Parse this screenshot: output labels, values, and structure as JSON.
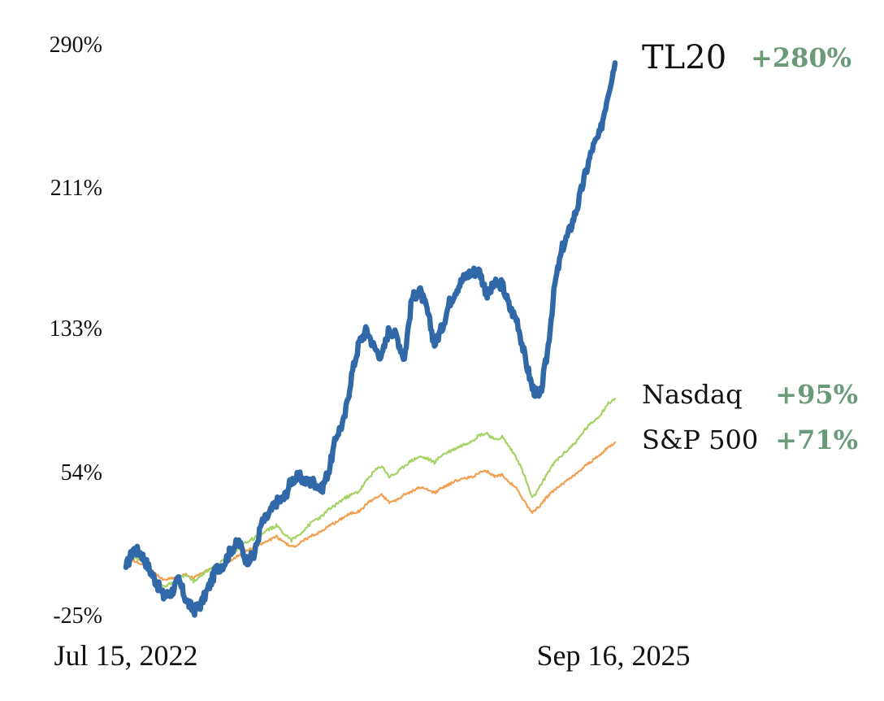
{
  "chart_data": {
    "type": "line",
    "title": "",
    "xlabel": "",
    "ylabel": "",
    "x_range": [
      "Jul 15, 2022",
      "Sep 16, 2025"
    ],
    "x_tick_labels": [
      "Jul 15, 2022",
      "Sep 16, 2025"
    ],
    "y_tick_labels": [
      "290%",
      "211%",
      "133%",
      "54%",
      "-25%"
    ],
    "y_tick_values": [
      290,
      211,
      133,
      54,
      -25
    ],
    "ylim": [
      -25,
      290
    ],
    "grid": false,
    "legend": "right, inline at series ends",
    "series": [
      {
        "name": "TL20",
        "return_label": "+280%",
        "color": "#3169a8",
        "name_color": "#3169a8",
        "return_color": "#6b9a78",
        "values": [
          2,
          12,
          10,
          2,
          -6,
          -14,
          -12,
          -5,
          -16,
          -22,
          -18,
          -9,
          1,
          4,
          12,
          16,
          6,
          8,
          26,
          31,
          38,
          40,
          50,
          52,
          49,
          49,
          45,
          56,
          75,
          83,
          108,
          126,
          133,
          123,
          118,
          134,
          129,
          117,
          150,
          155,
          144,
          125,
          134,
          148,
          156,
          162,
          165,
          165,
          152,
          158,
          158,
          145,
          138,
          118,
          101,
          95,
          120,
          158,
          178,
          188,
          201,
          218,
          233,
          241,
          262,
          280
        ]
      },
      {
        "name": "Nasdaq",
        "return_label": "+95%",
        "color": "#a4d465",
        "name_color": "#111111",
        "return_color": "#6b9a78",
        "values": [
          4,
          8,
          6,
          2,
          -4,
          -8,
          -7,
          -4,
          -2,
          -6,
          -2,
          1,
          3,
          6,
          9,
          13,
          16,
          18,
          20,
          23,
          25,
          21,
          17,
          20,
          24,
          28,
          30,
          34,
          37,
          40,
          42,
          44,
          50,
          55,
          58,
          52,
          54,
          58,
          61,
          63,
          62,
          60,
          64,
          66,
          68,
          70,
          72,
          75,
          76,
          72,
          74,
          68,
          62,
          52,
          40,
          46,
          54,
          60,
          64,
          68,
          72,
          78,
          82,
          86,
          92,
          95
        ]
      },
      {
        "name": "S&P 500",
        "return_label": "+71%",
        "color": "#f0a050",
        "name_color": "#111111",
        "return_color": "#6b9a78",
        "values": [
          3,
          6,
          4,
          2,
          -2,
          -5,
          -4,
          -3,
          -2,
          -4,
          -1,
          1,
          2,
          4,
          6,
          9,
          11,
          13,
          15,
          17,
          19,
          16,
          13,
          15,
          18,
          20,
          22,
          25,
          27,
          30,
          32,
          33,
          37,
          40,
          42,
          38,
          39,
          42,
          44,
          46,
          45,
          43,
          46,
          48,
          50,
          51,
          52,
          54,
          55,
          52,
          53,
          49,
          45,
          38,
          32,
          36,
          41,
          45,
          48,
          51,
          54,
          58,
          61,
          64,
          68,
          71
        ]
      }
    ]
  }
}
